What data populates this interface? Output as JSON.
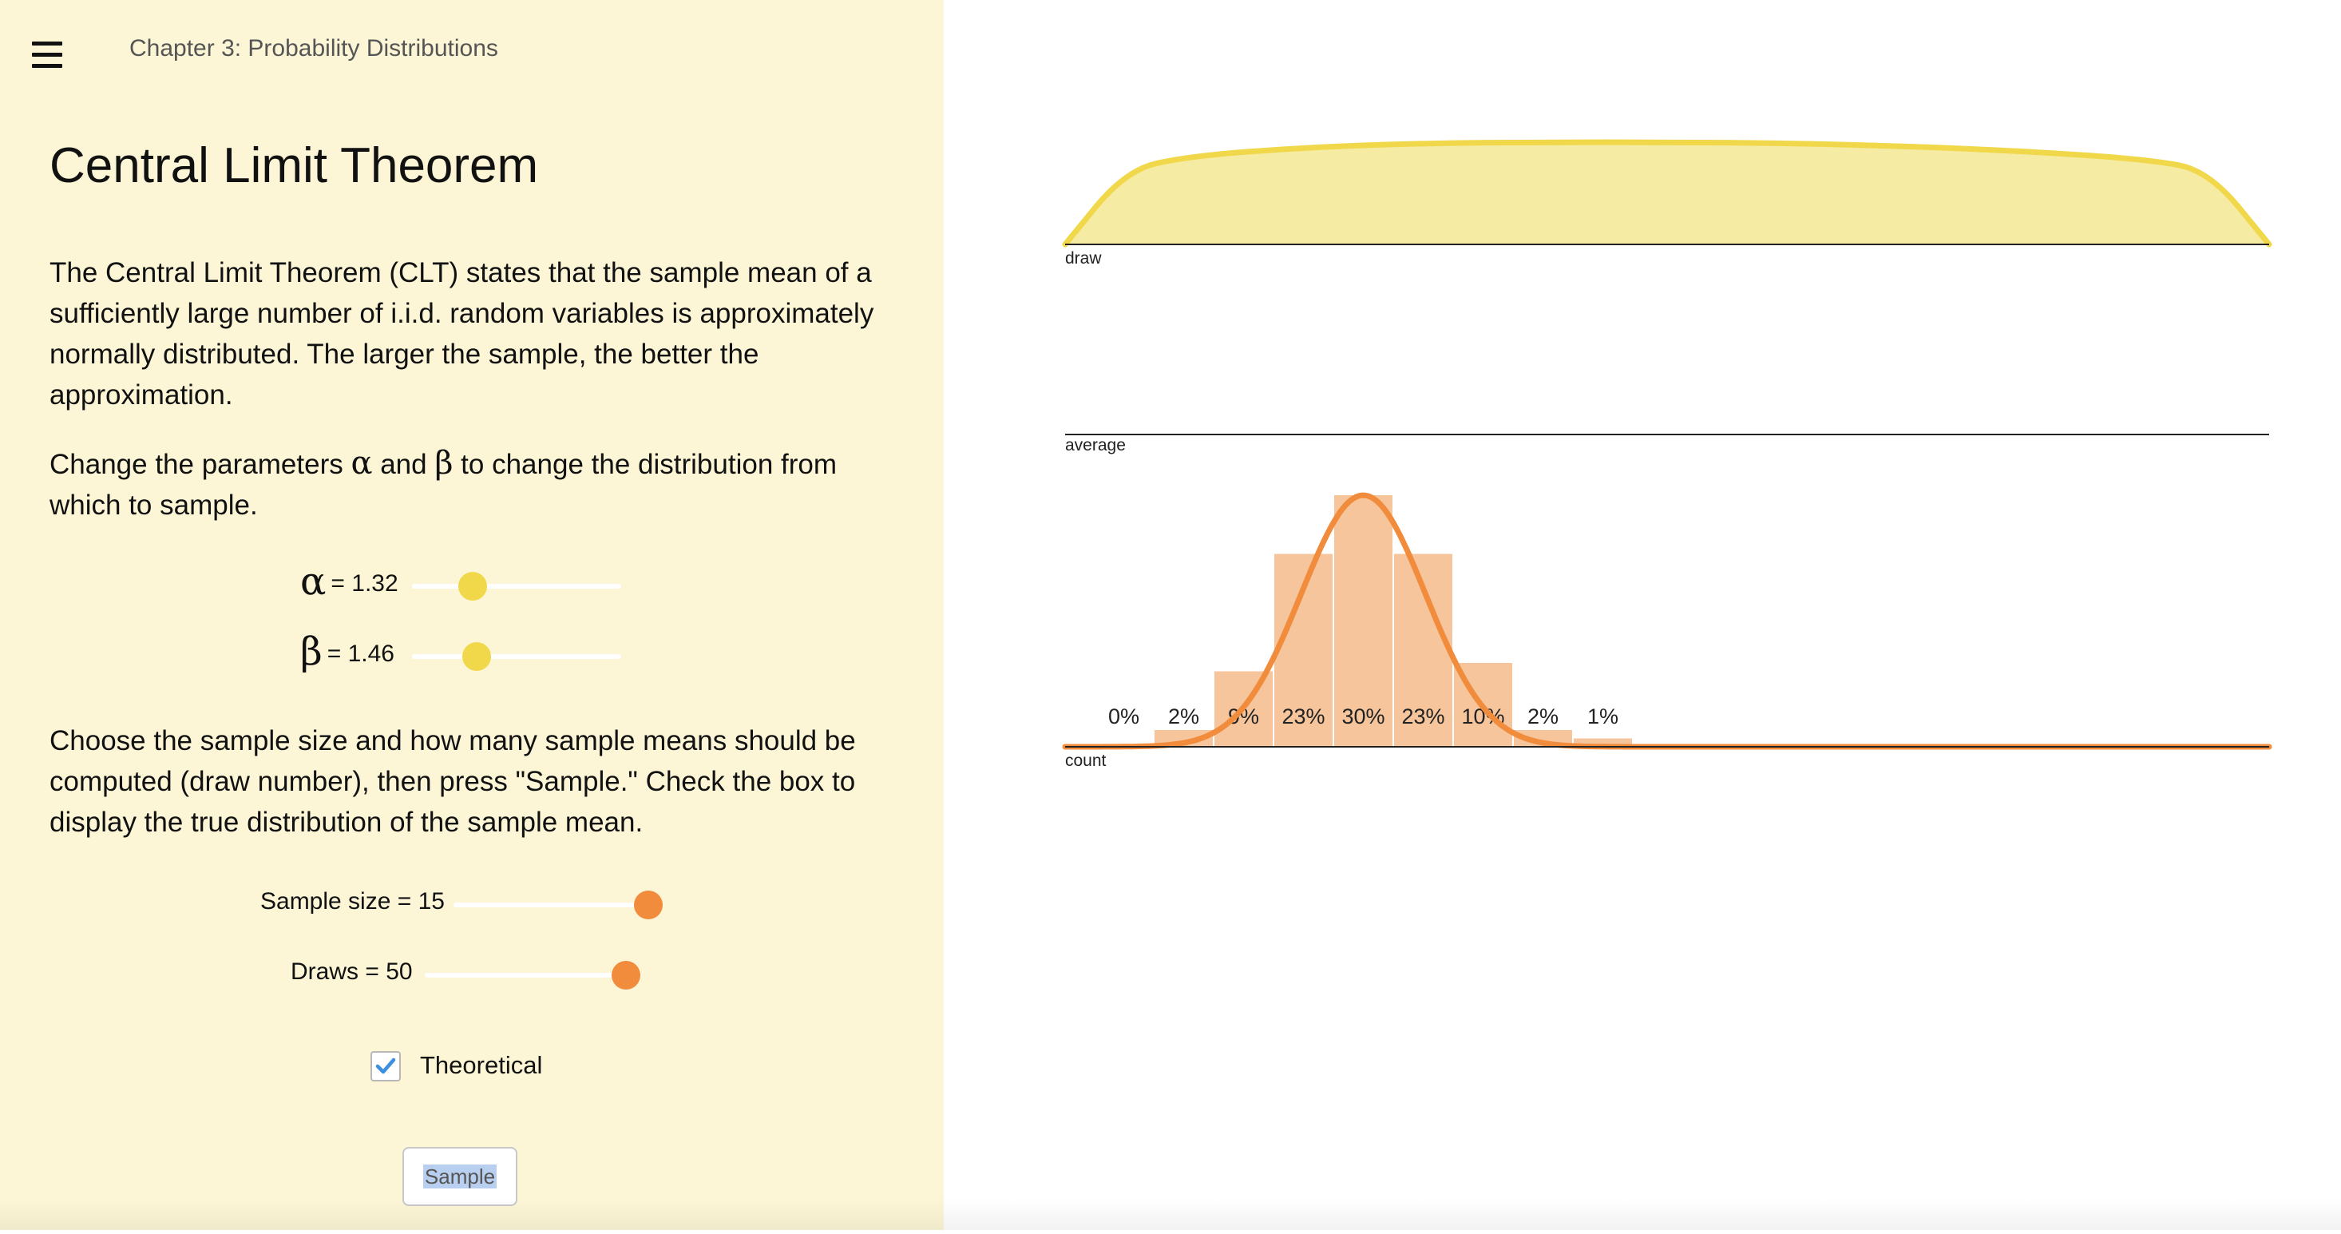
{
  "header": {
    "chapter": "Chapter 3: Probability Distributions",
    "menu_icon": "hamburger-menu-icon"
  },
  "main": {
    "title": "Central Limit Theorem",
    "intro": "The Central Limit Theorem (CLT) states that the sample mean of a sufficiently large number of i.i.d. random variables is approximately normally distributed. The larger the sample, the better the approximation.",
    "params_text": {
      "before": "Change the parameters ",
      "alpha": "α",
      "middle": " and ",
      "beta": "β",
      "after": " to change the distribution from which to sample."
    },
    "sample_text": "Choose the sample size and how many sample means should be computed (draw number), then press \"Sample.\" Check the box to display the true distribution of the sample mean."
  },
  "controls": {
    "alpha": {
      "symbol": "α",
      "value_text": "= 1.32",
      "value": 1.32,
      "fraction": 0.29
    },
    "beta": {
      "symbol": "β",
      "value_text": "= 1.46",
      "value": 1.46,
      "fraction": 0.31
    },
    "sample_size": {
      "label": "Sample size = 15",
      "value": 15,
      "fraction": 0.93
    },
    "draws": {
      "label": "Draws = 50",
      "value": 50,
      "fraction": 0.96
    },
    "theoretical": {
      "label": "Theoretical",
      "checked": true
    },
    "sample_button": "Sample",
    "colors": {
      "slider_yellow": "#f0d84a",
      "slider_orange": "#f08c3c",
      "checkbox_check": "#3d8fe0"
    }
  },
  "chart_data": [
    {
      "type": "area",
      "xlabel": "draw",
      "x": [
        0.0,
        0.05,
        0.1,
        0.2,
        0.3,
        0.4,
        0.5,
        0.6,
        0.7,
        0.8,
        0.9,
        0.95,
        1.0
      ],
      "y": [
        0.0,
        0.72,
        0.86,
        0.95,
        0.99,
        1.0,
        1.0,
        0.99,
        0.96,
        0.91,
        0.83,
        0.72,
        0.0
      ],
      "colors": {
        "fill": "#f5eba3",
        "stroke": "#f0d84a"
      }
    },
    {
      "type": "line",
      "xlabel": "average"
    },
    {
      "type": "bar",
      "xlabel": "count",
      "categories": [
        "0%",
        "2%",
        "9%",
        "23%",
        "30%",
        "23%",
        "10%",
        "2%",
        "1%"
      ],
      "values": [
        0,
        2,
        9,
        23,
        30,
        23,
        10,
        2,
        1
      ],
      "theoretical_curve": true,
      "colors": {
        "bar": "#f6c59c",
        "curve": "#f08c3c"
      }
    }
  ]
}
